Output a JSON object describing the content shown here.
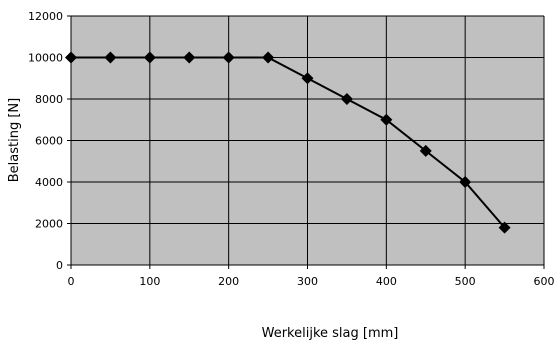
{
  "chart_data": {
    "type": "line",
    "title": "",
    "xlabel": "Werkelijke slag [mm]",
    "ylabel": "Belasting [N]",
    "xlim": [
      0,
      600
    ],
    "ylim": [
      0,
      12000
    ],
    "xticks": [
      0,
      100,
      200,
      300,
      400,
      500,
      600
    ],
    "yticks": [
      0,
      2000,
      4000,
      6000,
      8000,
      10000,
      12000
    ],
    "grid": true,
    "legend": "none",
    "plot_background": "#c0c0c0",
    "series": [
      {
        "color": "#000000",
        "marker": "diamond",
        "x": [
          0,
          50,
          100,
          150,
          200,
          250,
          300,
          350,
          400,
          450,
          500,
          550
        ],
        "y": [
          10000,
          10000,
          10000,
          10000,
          10000,
          10000,
          9000,
          8000,
          7000,
          5500,
          4000,
          1800
        ]
      }
    ]
  }
}
